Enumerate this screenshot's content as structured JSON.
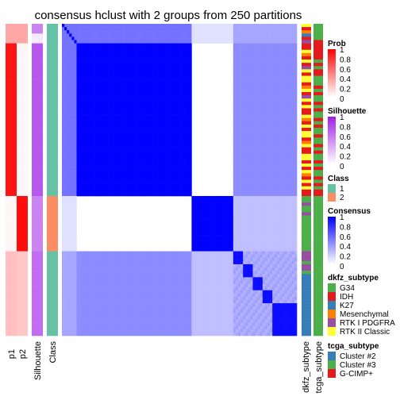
{
  "chart_data": {
    "type": "heatmap",
    "title": "consensus hclust with 2 groups from 250 partitions",
    "n_samples": 96,
    "row_blocks": [
      {
        "class": "1",
        "samples": 53,
        "cluster_spans": [
          3,
          3,
          47
        ]
      },
      {
        "class": "2",
        "samples": 17,
        "cluster_spans": [
          17
        ]
      },
      {
        "class": "1",
        "samples": 26,
        "cluster_spans": [
          4,
          4,
          4,
          4,
          10
        ]
      }
    ],
    "annotation_columns": [
      "p1",
      "p2",
      "Silhouette",
      "Class"
    ],
    "right_annotation_columns": [
      "dkfz_subtype",
      "tcga_subtype"
    ],
    "prob_values": {
      "class1_main": 0.92,
      "class1_top": 0.35,
      "class2": 0.95,
      "class1_bottom": 0.25
    },
    "silhouette_values": {
      "top_a": 0.55,
      "top_b": 0.1,
      "main": 0.75,
      "class2": 0.55,
      "bottom": 0.65
    },
    "consensus_levels": {
      "within_main": 1.0,
      "within_class2": 1.0,
      "between_main_class2": 0.0,
      "between_bottom_class2": 0.25,
      "between_bottom_main": 0.45,
      "within_bottom": 0.3
    },
    "legends": [
      {
        "title": "Prob",
        "ticks": [
          "1",
          "0.8",
          "0.6",
          "0.4",
          "0.2",
          "0"
        ],
        "colors": [
          "#ffffff",
          "#ff0000"
        ]
      },
      {
        "title": "Silhouette",
        "ticks": [
          "1",
          "0.8",
          "0.6",
          "0.4",
          "0.2",
          "0"
        ],
        "colors": [
          "#ffffff",
          "#9e1fe8"
        ]
      },
      {
        "title": "Class",
        "items": [
          {
            "label": "1",
            "color": "#66c2a5"
          },
          {
            "label": "2",
            "color": "#fc8d62"
          }
        ]
      },
      {
        "title": "Consensus",
        "ticks": [
          "1",
          "0.8",
          "0.6",
          "0.4",
          "0.2",
          "0"
        ],
        "colors": [
          "#ffffff",
          "#0000ff"
        ]
      },
      {
        "title": "dkfz_subtype",
        "items": [
          {
            "label": "G34",
            "color": "#4daf4a"
          },
          {
            "label": "IDH",
            "color": "#e41a1c"
          },
          {
            "label": "K27",
            "color": "#377eb8"
          },
          {
            "label": "Mesenchymal",
            "color": "#ff7f00"
          },
          {
            "label": "RTK I PDGFRA",
            "color": "#984ea3"
          },
          {
            "label": "RTK II Classic",
            "color": "#ffff33"
          }
        ]
      },
      {
        "title": "tcga_subtype",
        "items": [
          {
            "label": "Cluster #2",
            "color": "#377eb8"
          },
          {
            "label": "Cluster #3",
            "color": "#4daf4a"
          },
          {
            "label": "G-CIMP+",
            "color": "#e41a1c"
          }
        ]
      }
    ],
    "dkfz_pattern": [
      "yellow",
      "red",
      "orange",
      "blue",
      "red",
      "purple",
      "red",
      "red",
      "yellow",
      "orange",
      "red",
      "yellow",
      "red",
      "purple",
      "yellow",
      "red",
      "yellow",
      "yellow",
      "red",
      "orange",
      "yellow",
      "red",
      "purple",
      "yellow",
      "red",
      "yellow",
      "red",
      "red",
      "yellow",
      "orange",
      "red",
      "yellow",
      "red",
      "yellow",
      "yellow",
      "red",
      "orange",
      "yellow",
      "red",
      "red",
      "yellow",
      "yellow",
      "red",
      "yellow",
      "red",
      "yellow",
      "orange",
      "red",
      "yellow",
      "red",
      "yellow",
      "red",
      "red",
      "green",
      "green",
      "purple",
      "green",
      "green",
      "purple",
      "green",
      "green",
      "green",
      "green",
      "green",
      "green",
      "green",
      "green",
      "green",
      "green",
      "green",
      "purple",
      "purple",
      "purple",
      "green",
      "purple",
      "purple",
      "green",
      "blue",
      "blue",
      "blue",
      "blue",
      "blue",
      "blue",
      "blue",
      "blue",
      "blue",
      "blue",
      "blue",
      "blue",
      "blue",
      "blue",
      "blue",
      "blue",
      "blue",
      "blue",
      "blue"
    ],
    "tcga_pattern": [
      "green",
      "green",
      "green",
      "green",
      "green",
      "red",
      "red",
      "red",
      "red",
      "red",
      "red",
      "green",
      "red",
      "green",
      "red",
      "red",
      "green",
      "green",
      "green",
      "red",
      "green",
      "red",
      "green",
      "green",
      "red",
      "green",
      "red",
      "green",
      "green",
      "red",
      "green",
      "red",
      "green",
      "green",
      "red",
      "green",
      "green",
      "red",
      "green",
      "red",
      "green",
      "green",
      "red",
      "green",
      "red",
      "green",
      "green",
      "red",
      "green",
      "red",
      "green",
      "red",
      "red",
      "green",
      "green",
      "green",
      "green",
      "green",
      "green",
      "green",
      "green",
      "green",
      "green",
      "green",
      "green",
      "green",
      "green",
      "green",
      "green",
      "green",
      "green",
      "green",
      "green",
      "green",
      "green",
      "green",
      "green",
      "green",
      "green",
      "green",
      "green",
      "green",
      "green",
      "green",
      "green",
      "green",
      "green",
      "green",
      "green",
      "green",
      "green",
      "green",
      "green",
      "green",
      "green",
      "green"
    ]
  }
}
